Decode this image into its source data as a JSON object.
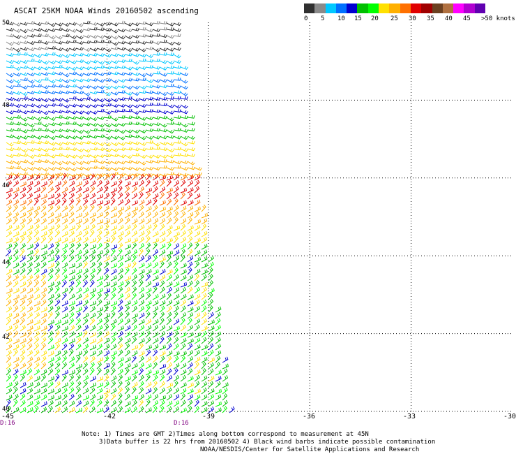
{
  "title": "ASCAT 25KM NOAA Winds 20160502 ascending",
  "color_scale": {
    "colors": [
      "#303030",
      "#8a8a8a",
      "#00c8ff",
      "#0070ff",
      "#0000d0",
      "#00c000",
      "#00ff00",
      "#ffe000",
      "#ffb000",
      "#ff7000",
      "#e00000",
      "#a00000",
      "#6b4020",
      "#b07040",
      "#ff00ff",
      "#b000d0",
      "#6000b0"
    ],
    "labels": [
      "0",
      "5",
      "10",
      "15",
      "20",
      "25",
      "30",
      "35",
      "40",
      "45",
      ">50 knots"
    ]
  },
  "axes": {
    "lat_labels": [
      "50",
      "48",
      "46",
      "44",
      "42",
      "40"
    ],
    "lon_labels": [
      "-45",
      "-42",
      "-39",
      "-36",
      "-33",
      "-30"
    ]
  },
  "time_labels": [
    "D:16",
    "D:16"
  ],
  "notes": {
    "line1": "Note: 1) Times are GMT 2)Times along bottom correspond to measurement at 45N",
    "line2": "3)Data buffer is 22 hrs from 20160502 4) Black wind barbs indicate possible contamination",
    "line3": "NOAA/NESDIS/Center for Satellite Applications and Research"
  },
  "wind_bands": [
    {
      "lat_from": 49.8,
      "lat_to": 50.0,
      "color": "#303030"
    },
    {
      "lat_from": 49.3,
      "lat_to": 49.8,
      "color": "#303030"
    },
    {
      "lat_from": 48.8,
      "lat_to": 49.3,
      "color": "#00c8ff"
    },
    {
      "lat_from": 48.2,
      "lat_to": 48.8,
      "color": "#0070ff"
    },
    {
      "lat_from": 47.6,
      "lat_to": 48.2,
      "color": "#0000d0"
    },
    {
      "lat_from": 47.0,
      "lat_to": 47.6,
      "color": "#00c000"
    },
    {
      "lat_from": 46.5,
      "lat_to": 47.0,
      "color": "#ffe000"
    },
    {
      "lat_from": 46.0,
      "lat_to": 46.5,
      "color": "#ffb000"
    },
    {
      "lat_from": 45.2,
      "lat_to": 46.0,
      "color": "#e00000"
    },
    {
      "lat_from": 44.7,
      "lat_to": 45.2,
      "color": "#ffb000"
    },
    {
      "lat_from": 44.2,
      "lat_to": 44.7,
      "color": "#ffe000"
    },
    {
      "lat_from": 40.0,
      "lat_to": 44.2,
      "color": "#00c000"
    }
  ]
}
